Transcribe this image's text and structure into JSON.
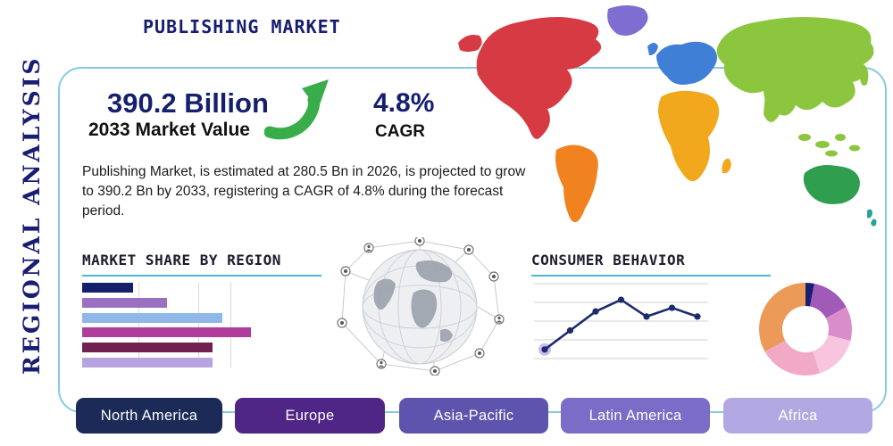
{
  "page": {
    "title": "PUBLISHING MARKET",
    "side_label": "REGIONAL ANALYSIS"
  },
  "stats": {
    "market_value": "390.2 Billion",
    "market_value_label": "2033 Market Value",
    "cagr_value": "4.8%",
    "cagr_label": "CAGR"
  },
  "description": "Publishing Market, is estimated at 280.5 Bn in 2026, is projected to grow to 390.2 Bn by 2033, registering a CAGR of 4.8% during the forecast period.",
  "section_headings": {
    "market_share": "MARKET SHARE BY REGION",
    "consumer_behavior": "CONSUMER BEHAVIOR"
  },
  "region_buttons": [
    {
      "label": "North America",
      "color": "#1c2a57"
    },
    {
      "label": "Europe",
      "color": "#4f2585"
    },
    {
      "label": "Asia-Pacific",
      "color": "#5d55ad"
    },
    {
      "label": "Latin America",
      "color": "#7a6cc7"
    },
    {
      "label": "Africa",
      "color": "#b3a9e2"
    }
  ],
  "colors": {
    "accent_navy": "#151f6e",
    "frame_border": "#85cbdf",
    "underline_teal": "#4db6d3",
    "arrow_green": "#3aad4b",
    "map": {
      "north_america": "#d63a42",
      "greenland": "#7f6dd2",
      "south_america": "#f0821f",
      "europe": "#3f7fd6",
      "africa": "#f2a81d",
      "asia": "#8cc63f",
      "australia": "#2f9e4e",
      "oceania": "#2aa198"
    }
  },
  "icons": {
    "growth_arrow": "growth-arrow-icon",
    "globe_network": "globe-network-icon",
    "world_map": "world-map-graphic"
  },
  "chart_data": [
    {
      "type": "bar",
      "title": "MARKET SHARE BY REGION",
      "orientation": "horizontal",
      "values": [
        21,
        35,
        58,
        70,
        54,
        54
      ],
      "value_scale": "relative length, percent of chart width (no axis labels shown)",
      "bar_colors": [
        "#14206b",
        "#9b6fc2",
        "#8fb7e9",
        "#b03d9b",
        "#702150",
        "#b6a3e0"
      ],
      "grid": "vertical-lines",
      "axis_labels_visible": false
    },
    {
      "type": "line",
      "title": "CONSUMER BEHAVIOR",
      "x": [
        1,
        2,
        3,
        4,
        5,
        6,
        7
      ],
      "values": [
        10,
        36,
        62,
        78,
        55,
        67,
        55
      ],
      "ylim": [
        0,
        100
      ],
      "line_color": "#1d2b6e",
      "first_point_halo_color": "#b9a6e6",
      "marker": "circle",
      "grid": "horizontal-lines",
      "axis_labels_visible": false
    },
    {
      "type": "pie",
      "donut": true,
      "labels_visible": false,
      "slices": [
        {
          "value": 3,
          "color": "#1a1f71"
        },
        {
          "value": 14,
          "color": "#a05ab8"
        },
        {
          "value": 12,
          "color": "#d98ec9"
        },
        {
          "value": 16,
          "color": "#f7c6de"
        },
        {
          "value": 22,
          "color": "#f2a9c6"
        },
        {
          "value": 33,
          "color": "#eb9a57"
        }
      ]
    }
  ]
}
